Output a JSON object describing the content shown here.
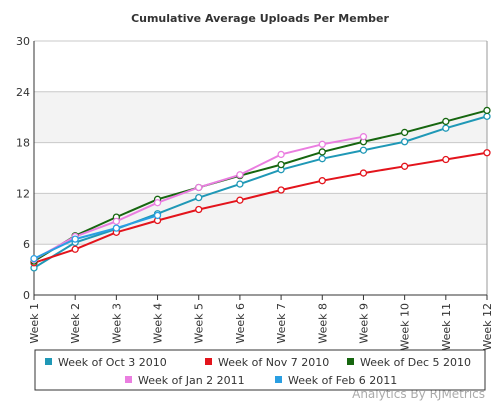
{
  "chart_data": {
    "type": "line",
    "title": "Cumulative Average Uploads Per Member",
    "categories": [
      "Week 1",
      "Week 2",
      "Week 3",
      "Week 4",
      "Week 5",
      "Week 6",
      "Week 7",
      "Week 8",
      "Week 9",
      "Week 10",
      "Week 11",
      "Week 12"
    ],
    "series": [
      {
        "name": "Week of Oct 3 2010",
        "color": "#1f98b6",
        "values": [
          3.2,
          6.2,
          7.8,
          9.6,
          11.5,
          13.1,
          14.8,
          16.1,
          17.1,
          18.1,
          19.7,
          21.1
        ]
      },
      {
        "name": "Week of Nov 7 2010",
        "color": "#e3141c",
        "values": [
          3.8,
          5.4,
          7.4,
          8.8,
          10.1,
          11.2,
          12.4,
          13.5,
          14.4,
          15.2,
          16.0,
          16.8
        ]
      },
      {
        "name": "Week of Dec 5 2010",
        "color": "#16660f",
        "values": [
          4.0,
          7.0,
          9.2,
          11.3,
          12.7,
          14.1,
          15.4,
          16.9,
          18.1,
          19.2,
          20.5,
          21.8
        ]
      },
      {
        "name": "Week of Jan 2 2011",
        "color": "#ea7ee0",
        "values": [
          4.2,
          6.9,
          8.7,
          10.9,
          12.7,
          14.2,
          16.6,
          17.8,
          18.7,
          null,
          null,
          null
        ]
      },
      {
        "name": "Week of Feb 6 2011",
        "color": "#2a9fe2",
        "values": [
          4.3,
          6.6,
          7.9,
          9.4,
          null,
          null,
          null,
          null,
          null,
          null,
          null,
          null
        ]
      }
    ],
    "ylim": [
      0,
      30
    ],
    "yticks": [
      0,
      6,
      12,
      18,
      24,
      30
    ],
    "grid": true,
    "credit": "Analytics By RJMetrics"
  }
}
